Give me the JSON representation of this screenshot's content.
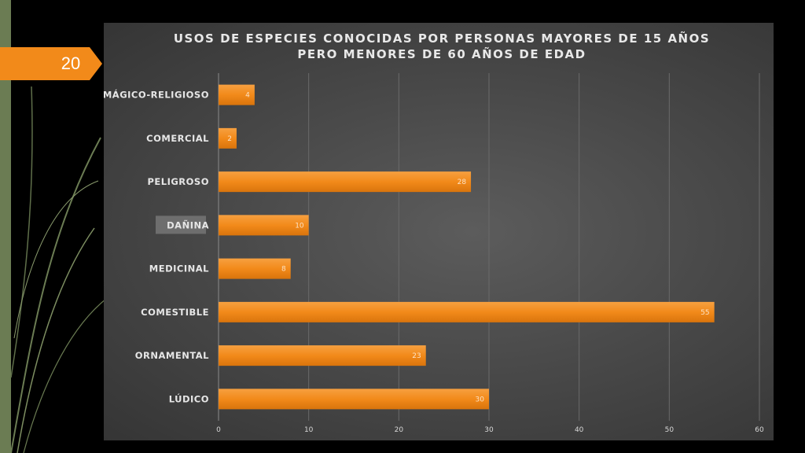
{
  "slide": {
    "page_number": "20",
    "accent_color": "#f28a1a",
    "decor_color": "#6b7c53"
  },
  "chart_data": {
    "type": "bar",
    "orientation": "horizontal",
    "title": "USOS DE ESPECIES CONOCIDAS POR PERSONAS MAYORES DE 15 AÑOS PERO MENORES DE 60 AÑOS DE EDAD",
    "title_lines": [
      "USOS DE ESPECIES CONOCIDAS POR PERSONAS MAYORES DE 15 AÑOS",
      "PERO MENORES DE 60 AÑOS DE EDAD"
    ],
    "categories": [
      "MÁGICO-RELIGIOSO",
      "COMERCIAL",
      "PELIGROSO",
      "DAÑINA",
      "MEDICINAL",
      "COMESTIBLE",
      "ORNAMENTAL",
      "LÚDICO"
    ],
    "values": [
      4,
      2,
      28,
      10,
      8,
      55,
      23,
      30
    ],
    "highlighted_category": "DAÑINA",
    "xlim": [
      0,
      60
    ],
    "xticks": [
      0,
      10,
      20,
      30,
      40,
      50,
      60
    ],
    "xlabel": "",
    "ylabel": "",
    "grid": true,
    "legend": "none",
    "bar_color": "#f28a1a",
    "data_labels": true
  }
}
